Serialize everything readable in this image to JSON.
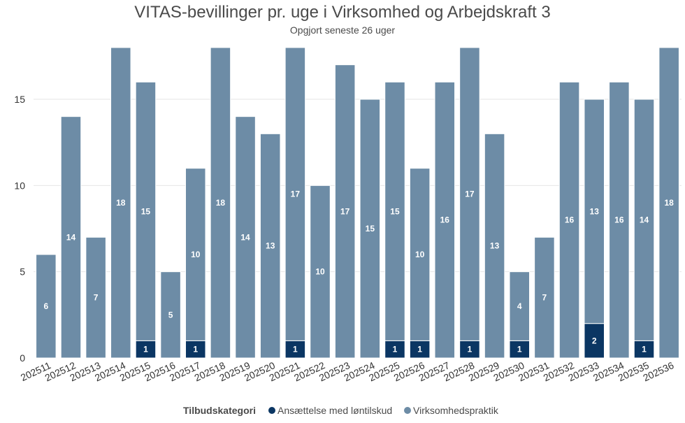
{
  "chart_data": {
    "type": "bar",
    "stacked": true,
    "title": "VITAS-bevillinger pr. uge i Virksomhed og Arbejdskraft 3",
    "subtitle": "Opgjort seneste 26 uger",
    "xlabel": "",
    "ylabel": "",
    "ylim": [
      0,
      18
    ],
    "yticks": [
      0,
      5,
      10,
      15
    ],
    "grid": true,
    "categories": [
      "202511",
      "202512",
      "202513",
      "202514",
      "202515",
      "202516",
      "202517",
      "202518",
      "202519",
      "202520",
      "202521",
      "202522",
      "202523",
      "202524",
      "202525",
      "202526",
      "202527",
      "202528",
      "202529",
      "202530",
      "202531",
      "202532",
      "202533",
      "202534",
      "202535",
      "202536"
    ],
    "series": [
      {
        "name": "Ansættelse med løntilskud",
        "color": "#0b3663",
        "values": [
          0,
          0,
          0,
          0,
          1,
          0,
          1,
          0,
          0,
          0,
          1,
          0,
          0,
          0,
          1,
          1,
          0,
          1,
          0,
          1,
          0,
          0,
          2,
          0,
          1,
          0
        ]
      },
      {
        "name": "Virksomhedspraktik",
        "color": "#6d8ca6",
        "values": [
          6,
          14,
          7,
          18,
          15,
          5,
          10,
          18,
          14,
          13,
          17,
          10,
          17,
          15,
          15,
          10,
          16,
          17,
          13,
          4,
          7,
          16,
          13,
          16,
          14,
          18
        ]
      }
    ],
    "legend": {
      "title": "Tilbudskategori",
      "position": "bottom"
    }
  }
}
